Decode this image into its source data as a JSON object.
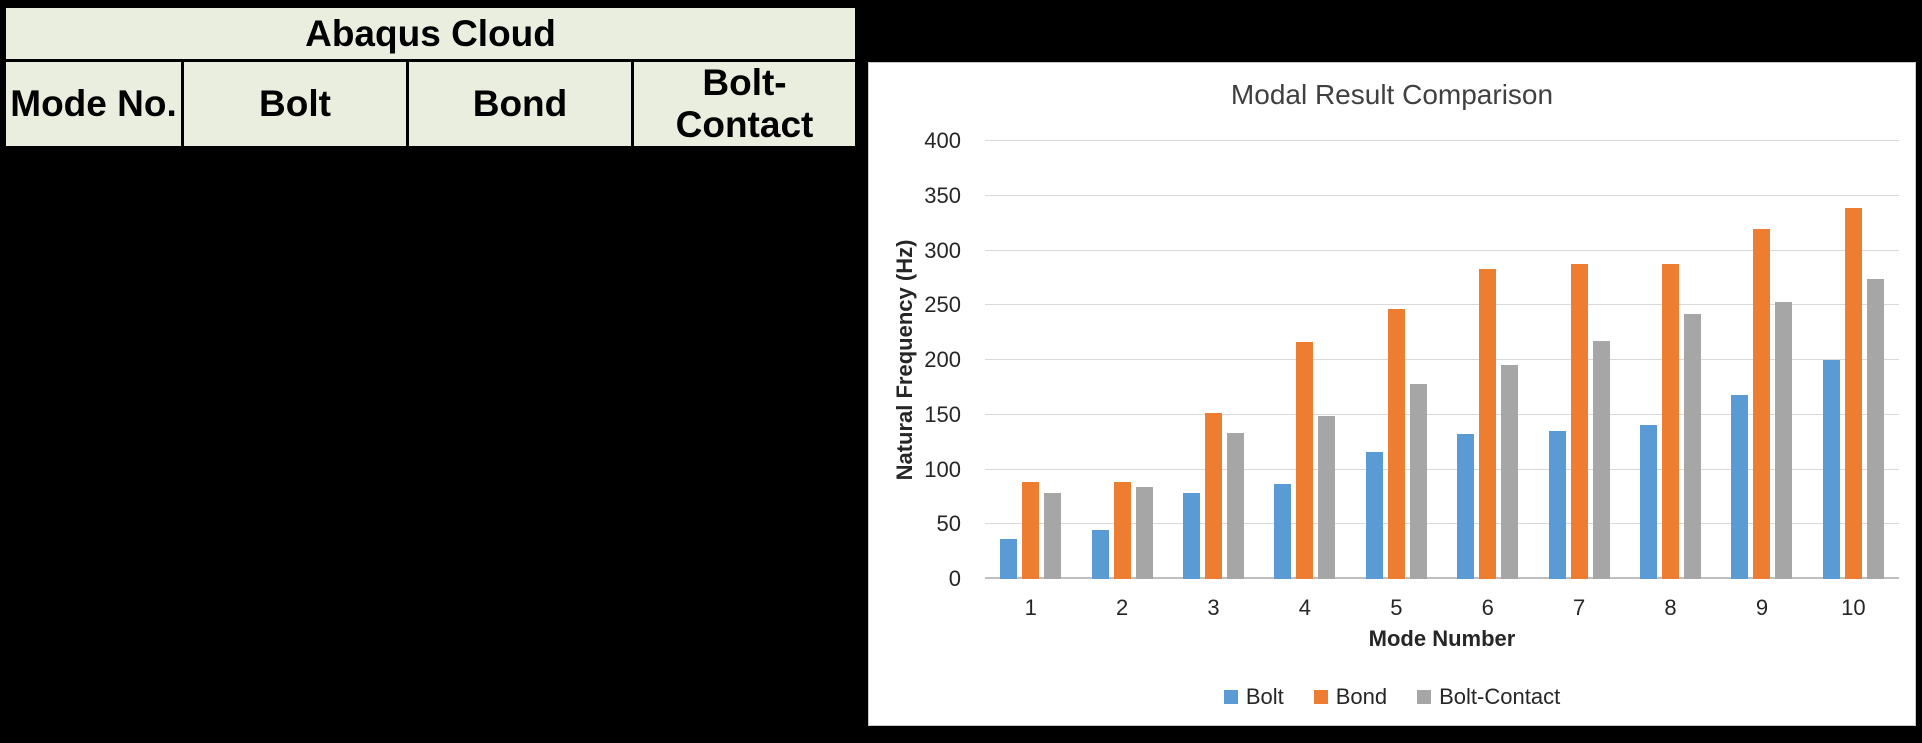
{
  "colors": {
    "background": "#000000",
    "table_fill": "#EAEEDF",
    "table_border": "#000000",
    "panel_background": "#FFFFFF",
    "panel_border": "#C8C8C8",
    "chart_title_color": "#404040",
    "chart_text_color": "#262626"
  },
  "table": {
    "title": "Abaqus Cloud",
    "columns": [
      "Mode No.",
      "Bolt",
      "Bond",
      "Bolt-Contact"
    ]
  },
  "chart_data": {
    "type": "bar",
    "title": "Modal Result Comparison",
    "xlabel": "Mode Number",
    "ylabel": "Natural Frequency (Hz)",
    "categories": [
      1,
      2,
      3,
      4,
      5,
      6,
      7,
      8,
      9,
      10
    ],
    "series": [
      {
        "name": "Bolt",
        "color": "#5B9BD5",
        "values": [
          37,
          45,
          79,
          87,
          116,
          132,
          135,
          141,
          168,
          200
        ]
      },
      {
        "name": "Bond",
        "color": "#ED7D31",
        "values": [
          89,
          89,
          152,
          216,
          247,
          283,
          288,
          288,
          320,
          339
        ]
      },
      {
        "name": "Bolt-Contact",
        "color": "#A6A6A6",
        "values": [
          79,
          84,
          133,
          149,
          178,
          195,
          217,
          242,
          253,
          274
        ]
      }
    ],
    "ylim": [
      0,
      400
    ],
    "ytick_step": 50,
    "grid": true,
    "gridline_color": "#D9D9D9",
    "axis_line_color": "#BFBFBF",
    "legend_position": "bottom"
  }
}
